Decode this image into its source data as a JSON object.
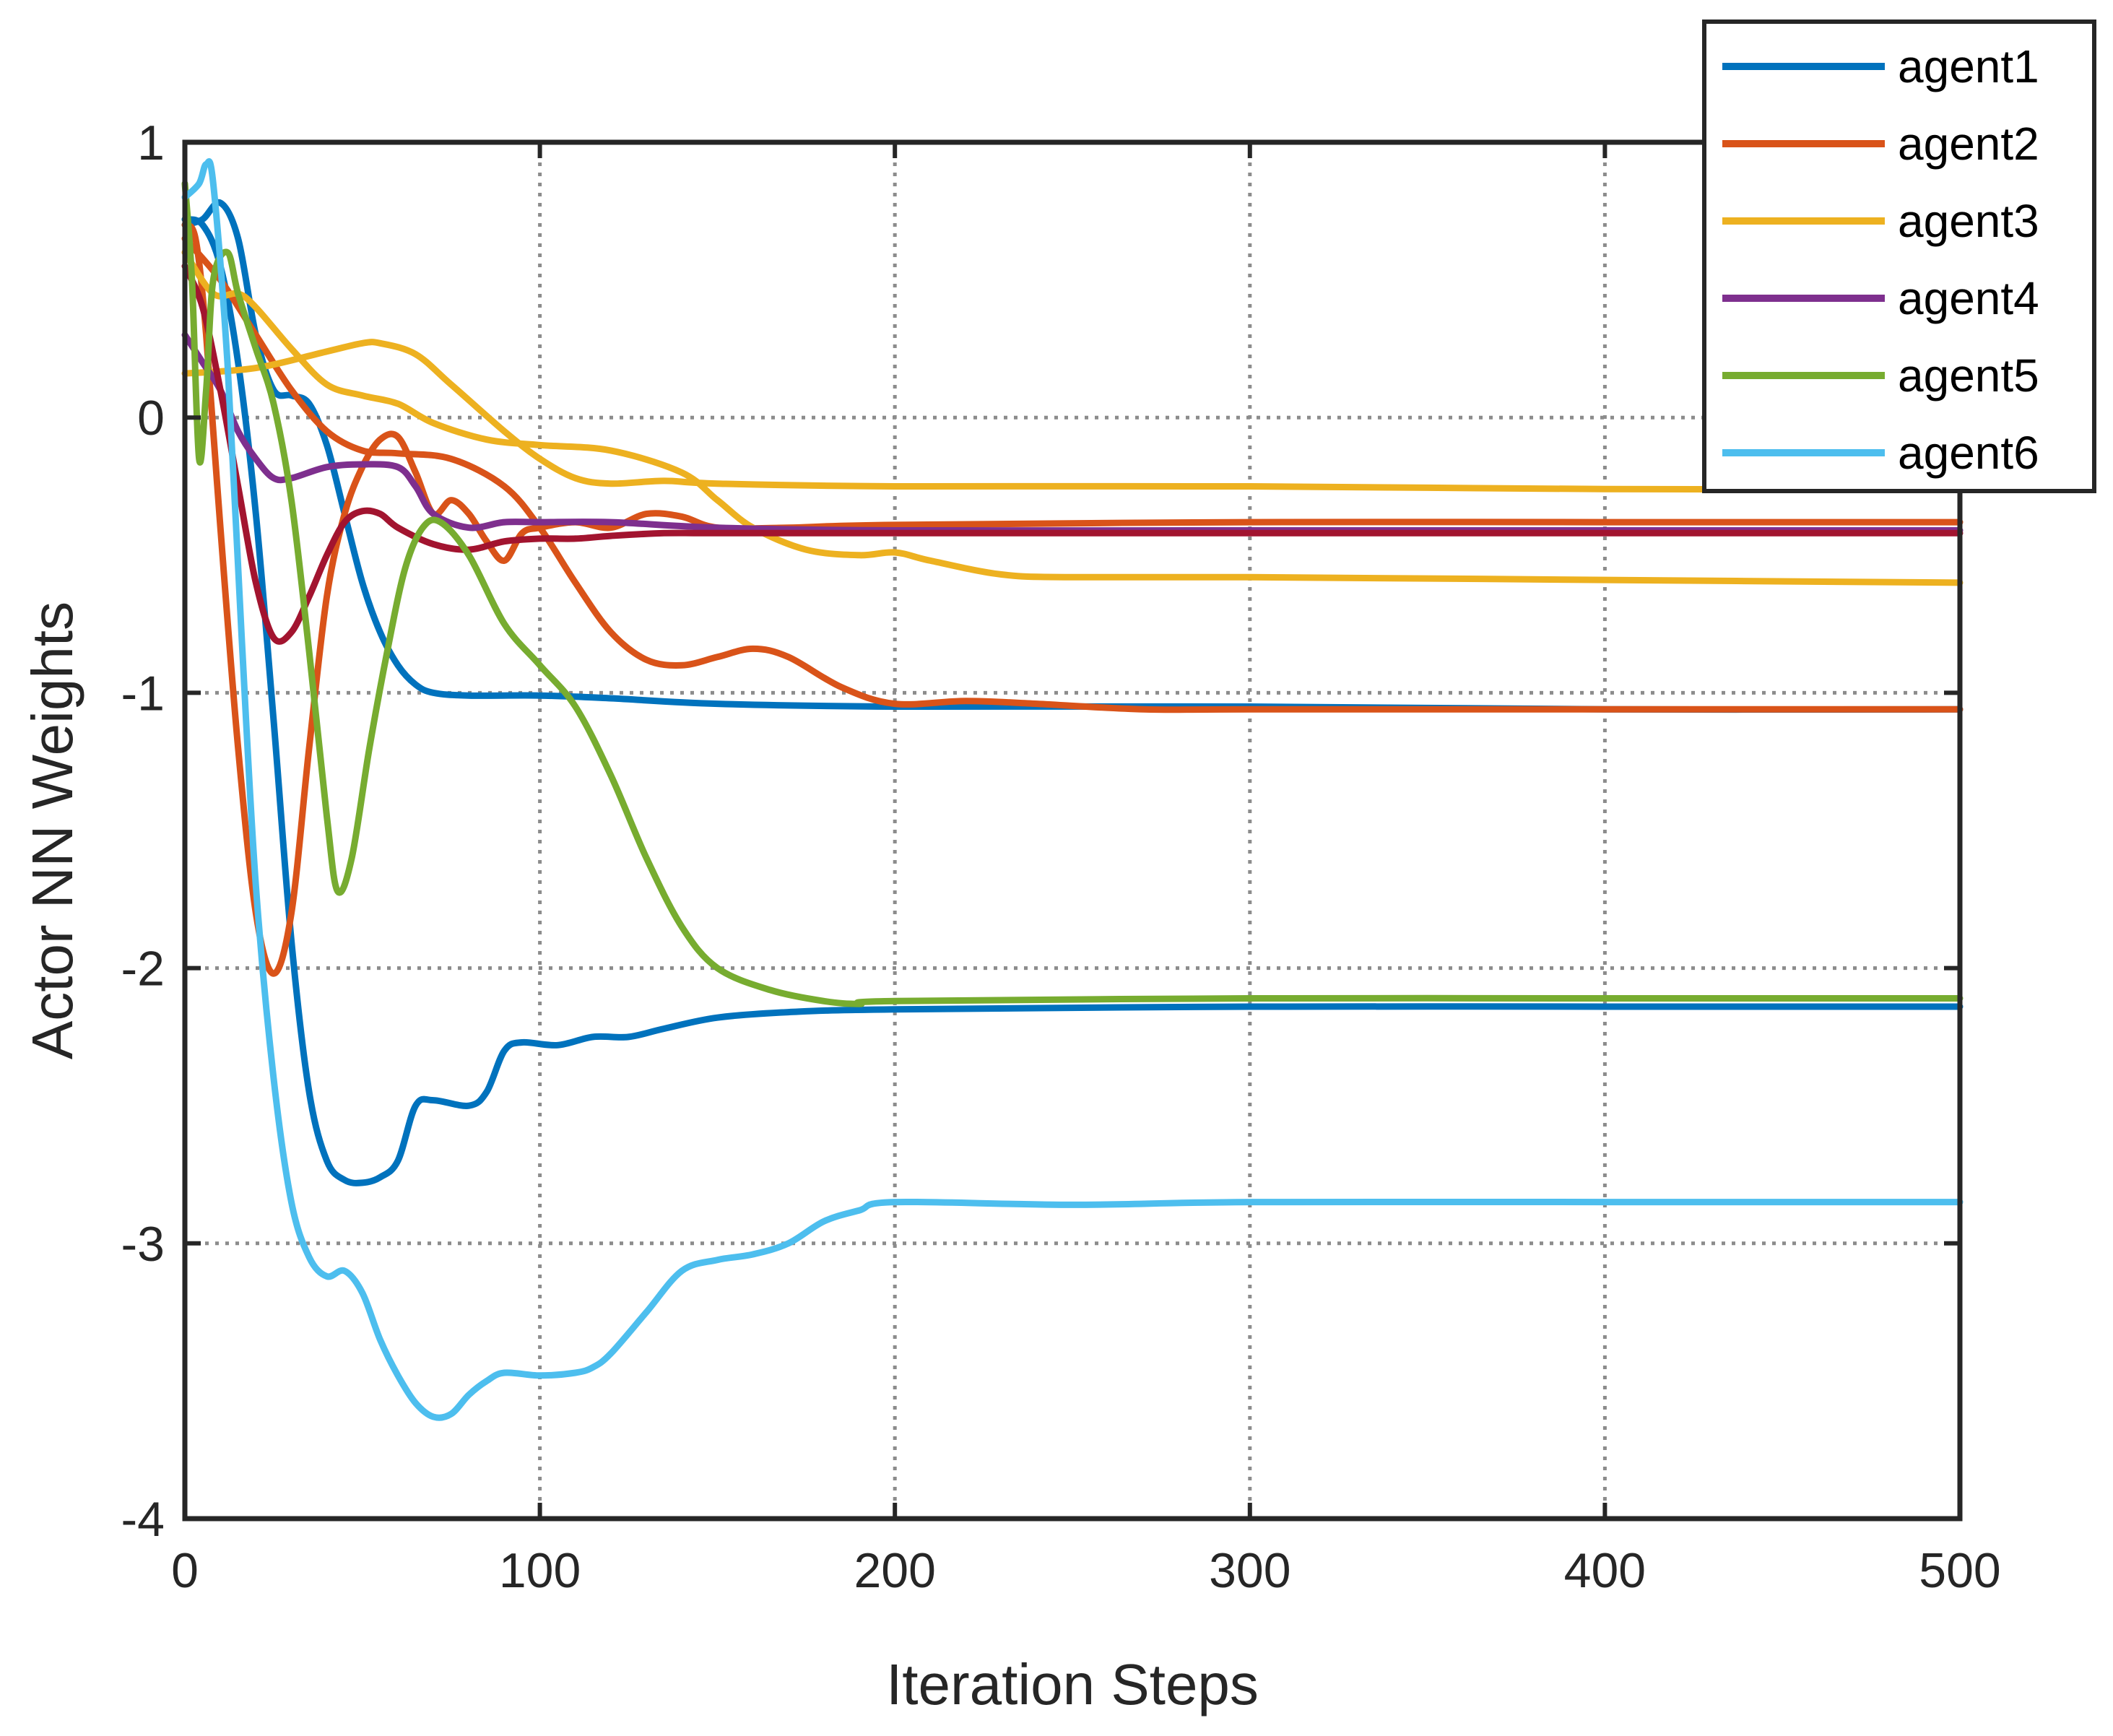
{
  "chart_data": {
    "type": "line",
    "title": "",
    "xlabel": "Iteration Steps",
    "ylabel": "Actor NN Weights",
    "xlim": [
      0,
      500
    ],
    "ylim": [
      -4,
      1
    ],
    "xticks": [
      0,
      100,
      200,
      300,
      400,
      500
    ],
    "yticks": [
      -4,
      -3,
      -2,
      -1,
      0,
      1
    ],
    "grid": true,
    "legend_position": "top-right",
    "series": [
      {
        "name": "agent1",
        "legend": true,
        "color": "#0072BD",
        "points": [
          [
            0,
            0.7
          ],
          [
            5,
            0.72
          ],
          [
            10,
            0.78
          ],
          [
            15,
            0.65
          ],
          [
            20,
            0.3
          ],
          [
            25,
            0.1
          ],
          [
            30,
            0.08
          ],
          [
            35,
            0.05
          ],
          [
            40,
            -0.1
          ],
          [
            45,
            -0.35
          ],
          [
            50,
            -0.6
          ],
          [
            55,
            -0.78
          ],
          [
            60,
            -0.9
          ],
          [
            65,
            -0.97
          ],
          [
            70,
            -1.0
          ],
          [
            80,
            -1.01
          ],
          [
            100,
            -1.01
          ],
          [
            120,
            -1.02
          ],
          [
            150,
            -1.04
          ],
          [
            200,
            -1.05
          ],
          [
            300,
            -1.05
          ],
          [
            400,
            -1.06
          ],
          [
            500,
            -1.06
          ]
        ]
      },
      {
        "name": "agent1",
        "legend": false,
        "color": "#0072BD",
        "points": [
          [
            0,
            0.72
          ],
          [
            5,
            0.7
          ],
          [
            10,
            0.55
          ],
          [
            15,
            0.2
          ],
          [
            20,
            -0.35
          ],
          [
            25,
            -1.1
          ],
          [
            30,
            -1.9
          ],
          [
            35,
            -2.45
          ],
          [
            40,
            -2.7
          ],
          [
            45,
            -2.77
          ],
          [
            50,
            -2.78
          ],
          [
            55,
            -2.76
          ],
          [
            60,
            -2.7
          ],
          [
            65,
            -2.5
          ],
          [
            70,
            -2.48
          ],
          [
            80,
            -2.5
          ],
          [
            85,
            -2.45
          ],
          [
            90,
            -2.3
          ],
          [
            95,
            -2.27
          ],
          [
            105,
            -2.28
          ],
          [
            115,
            -2.25
          ],
          [
            125,
            -2.25
          ],
          [
            135,
            -2.22
          ],
          [
            150,
            -2.18
          ],
          [
            170,
            -2.16
          ],
          [
            200,
            -2.15
          ],
          [
            300,
            -2.14
          ],
          [
            400,
            -2.14
          ],
          [
            500,
            -2.14
          ]
        ]
      },
      {
        "name": "agent2",
        "legend": true,
        "color": "#D95319",
        "points": [
          [
            0,
            0.7
          ],
          [
            3,
            0.65
          ],
          [
            6,
            0.3
          ],
          [
            10,
            -0.4
          ],
          [
            15,
            -1.2
          ],
          [
            20,
            -1.8
          ],
          [
            25,
            -2.02
          ],
          [
            30,
            -1.8
          ],
          [
            35,
            -1.2
          ],
          [
            40,
            -0.65
          ],
          [
            45,
            -0.35
          ],
          [
            50,
            -0.18
          ],
          [
            55,
            -0.08
          ],
          [
            60,
            -0.07
          ],
          [
            65,
            -0.2
          ],
          [
            70,
            -0.35
          ],
          [
            75,
            -0.3
          ],
          [
            80,
            -0.35
          ],
          [
            85,
            -0.45
          ],
          [
            90,
            -0.52
          ],
          [
            95,
            -0.42
          ],
          [
            100,
            -0.4
          ],
          [
            110,
            -0.38
          ],
          [
            120,
            -0.4
          ],
          [
            130,
            -0.35
          ],
          [
            140,
            -0.36
          ],
          [
            150,
            -0.4
          ],
          [
            170,
            -0.4
          ],
          [
            200,
            -0.39
          ],
          [
            300,
            -0.38
          ],
          [
            400,
            -0.38
          ],
          [
            500,
            -0.38
          ]
        ]
      },
      {
        "name": "agent2",
        "legend": false,
        "color": "#D95319",
        "points": [
          [
            0,
            0.65
          ],
          [
            10,
            0.5
          ],
          [
            20,
            0.3
          ],
          [
            30,
            0.1
          ],
          [
            40,
            -0.05
          ],
          [
            50,
            -0.12
          ],
          [
            60,
            -0.13
          ],
          [
            75,
            -0.15
          ],
          [
            90,
            -0.25
          ],
          [
            100,
            -0.4
          ],
          [
            110,
            -0.6
          ],
          [
            120,
            -0.78
          ],
          [
            130,
            -0.88
          ],
          [
            140,
            -0.9
          ],
          [
            150,
            -0.87
          ],
          [
            160,
            -0.84
          ],
          [
            170,
            -0.87
          ],
          [
            185,
            -0.98
          ],
          [
            200,
            -1.04
          ],
          [
            220,
            -1.03
          ],
          [
            240,
            -1.04
          ],
          [
            270,
            -1.06
          ],
          [
            300,
            -1.06
          ],
          [
            400,
            -1.06
          ],
          [
            500,
            -1.06
          ]
        ]
      },
      {
        "name": "agent3",
        "legend": true,
        "color": "#EDB120",
        "points": [
          [
            0,
            0.16
          ],
          [
            20,
            0.18
          ],
          [
            40,
            0.24
          ],
          [
            50,
            0.27
          ],
          [
            55,
            0.27
          ],
          [
            65,
            0.23
          ],
          [
            75,
            0.12
          ],
          [
            90,
            -0.05
          ],
          [
            100,
            -0.15
          ],
          [
            110,
            -0.22
          ],
          [
            120,
            -0.24
          ],
          [
            135,
            -0.23
          ],
          [
            150,
            -0.24
          ],
          [
            200,
            -0.25
          ],
          [
            300,
            -0.25
          ],
          [
            400,
            -0.26
          ],
          [
            500,
            -0.26
          ]
        ]
      },
      {
        "name": "agent3",
        "legend": false,
        "color": "#EDB120",
        "points": [
          [
            0,
            0.6
          ],
          [
            8,
            0.45
          ],
          [
            15,
            0.45
          ],
          [
            20,
            0.4
          ],
          [
            30,
            0.25
          ],
          [
            40,
            0.12
          ],
          [
            50,
            0.08
          ],
          [
            60,
            0.05
          ],
          [
            70,
            -0.02
          ],
          [
            85,
            -0.08
          ],
          [
            100,
            -0.1
          ],
          [
            120,
            -0.12
          ],
          [
            140,
            -0.2
          ],
          [
            150,
            -0.3
          ],
          [
            160,
            -0.4
          ],
          [
            175,
            -0.48
          ],
          [
            190,
            -0.5
          ],
          [
            200,
            -0.49
          ],
          [
            210,
            -0.52
          ],
          [
            230,
            -0.57
          ],
          [
            250,
            -0.58
          ],
          [
            300,
            -0.58
          ],
          [
            400,
            -0.59
          ],
          [
            500,
            -0.6
          ]
        ]
      },
      {
        "name": "agent4",
        "legend": true,
        "color": "#7E2F8E",
        "points": [
          [
            0,
            0.3
          ],
          [
            5,
            0.2
          ],
          [
            10,
            0.1
          ],
          [
            15,
            -0.05
          ],
          [
            20,
            -0.15
          ],
          [
            25,
            -0.22
          ],
          [
            30,
            -0.22
          ],
          [
            40,
            -0.18
          ],
          [
            50,
            -0.17
          ],
          [
            60,
            -0.18
          ],
          [
            65,
            -0.25
          ],
          [
            70,
            -0.35
          ],
          [
            80,
            -0.4
          ],
          [
            90,
            -0.38
          ],
          [
            100,
            -0.38
          ],
          [
            120,
            -0.38
          ],
          [
            150,
            -0.4
          ],
          [
            200,
            -0.41
          ],
          [
            300,
            -0.41
          ],
          [
            400,
            -0.41
          ],
          [
            500,
            -0.41
          ]
        ]
      },
      {
        "name": "agent4",
        "legend": false,
        "color": "#A2142F",
        "points": [
          [
            0,
            0.55
          ],
          [
            5,
            0.4
          ],
          [
            10,
            0.1
          ],
          [
            15,
            -0.25
          ],
          [
            20,
            -0.6
          ],
          [
            25,
            -0.8
          ],
          [
            30,
            -0.78
          ],
          [
            35,
            -0.65
          ],
          [
            40,
            -0.5
          ],
          [
            45,
            -0.38
          ],
          [
            50,
            -0.34
          ],
          [
            55,
            -0.35
          ],
          [
            60,
            -0.4
          ],
          [
            70,
            -0.46
          ],
          [
            80,
            -0.48
          ],
          [
            90,
            -0.45
          ],
          [
            100,
            -0.44
          ],
          [
            110,
            -0.44
          ],
          [
            120,
            -0.43
          ],
          [
            135,
            -0.42
          ],
          [
            150,
            -0.42
          ],
          [
            200,
            -0.42
          ],
          [
            300,
            -0.42
          ],
          [
            400,
            -0.42
          ],
          [
            500,
            -0.42
          ]
        ]
      },
      {
        "name": "agent5",
        "legend": true,
        "color": "#77AC30",
        "points": [
          [
            0,
            0.85
          ],
          [
            2,
            0.5
          ],
          [
            4,
            -0.15
          ],
          [
            6,
            0.1
          ],
          [
            8,
            0.5
          ],
          [
            12,
            0.6
          ],
          [
            15,
            0.45
          ],
          [
            20,
            0.25
          ],
          [
            25,
            0.05
          ],
          [
            30,
            -0.3
          ],
          [
            35,
            -0.85
          ],
          [
            40,
            -1.45
          ],
          [
            43,
            -1.72
          ],
          [
            47,
            -1.6
          ],
          [
            52,
            -1.2
          ],
          [
            57,
            -0.85
          ],
          [
            62,
            -0.55
          ],
          [
            67,
            -0.4
          ],
          [
            72,
            -0.38
          ],
          [
            80,
            -0.5
          ],
          [
            90,
            -0.75
          ],
          [
            100,
            -0.9
          ],
          [
            110,
            -1.05
          ],
          [
            120,
            -1.3
          ],
          [
            130,
            -1.6
          ],
          [
            140,
            -1.85
          ],
          [
            150,
            -2.0
          ],
          [
            165,
            -2.08
          ],
          [
            180,
            -2.12
          ],
          [
            190,
            -2.13
          ],
          [
            200,
            -2.12
          ],
          [
            300,
            -2.11
          ],
          [
            400,
            -2.11
          ],
          [
            500,
            -2.11
          ]
        ]
      },
      {
        "name": "agent6",
        "legend": true,
        "color": "#4DBEEE",
        "points": [
          [
            0,
            0.8
          ],
          [
            4,
            0.85
          ],
          [
            6,
            0.92
          ],
          [
            8,
            0.85
          ],
          [
            12,
            0.2
          ],
          [
            16,
            -0.8
          ],
          [
            20,
            -1.7
          ],
          [
            25,
            -2.4
          ],
          [
            30,
            -2.85
          ],
          [
            35,
            -3.05
          ],
          [
            40,
            -3.12
          ],
          [
            45,
            -3.1
          ],
          [
            50,
            -3.18
          ],
          [
            55,
            -3.35
          ],
          [
            60,
            -3.48
          ],
          [
            65,
            -3.58
          ],
          [
            70,
            -3.63
          ],
          [
            75,
            -3.62
          ],
          [
            80,
            -3.55
          ],
          [
            85,
            -3.5
          ],
          [
            90,
            -3.47
          ],
          [
            100,
            -3.48
          ],
          [
            110,
            -3.47
          ],
          [
            115,
            -3.45
          ],
          [
            120,
            -3.4
          ],
          [
            130,
            -3.25
          ],
          [
            140,
            -3.1
          ],
          [
            150,
            -3.06
          ],
          [
            160,
            -3.04
          ],
          [
            170,
            -3.0
          ],
          [
            180,
            -2.92
          ],
          [
            190,
            -2.88
          ],
          [
            200,
            -2.85
          ],
          [
            250,
            -2.86
          ],
          [
            300,
            -2.85
          ],
          [
            400,
            -2.85
          ],
          [
            500,
            -2.85
          ]
        ]
      }
    ]
  }
}
